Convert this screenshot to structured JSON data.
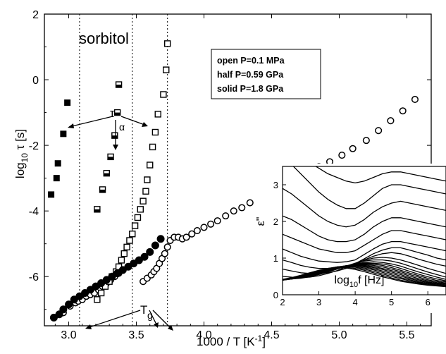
{
  "chart_data": [
    {
      "type": "scatter",
      "xlabel_prefix": "1000 / T  [K",
      "xlabel_sup": "-1",
      "xlabel_suffix": "]",
      "ylabel_prefix": "log",
      "ylabel_sub": "10",
      "ylabel_suffix": " τ [s]",
      "xlim": [
        2.82,
        5.68
      ],
      "ylim": [
        -7.5,
        2
      ],
      "x_ticks": [
        {
          "value": 3.0,
          "label": "3.0"
        },
        {
          "value": 3.5,
          "label": "3.5"
        },
        {
          "value": 4.0,
          "label": "4.0"
        },
        {
          "value": 4.5,
          "label": "4.5"
        },
        {
          "value": 5.0,
          "label": "5.0"
        },
        {
          "value": 5.5,
          "label": "5.5"
        }
      ],
      "y_ticks": [
        {
          "value": 2,
          "label": "2"
        },
        {
          "value": 0,
          "label": "0"
        },
        {
          "value": -2,
          "label": "-2"
        },
        {
          "value": -4,
          "label": "-4"
        },
        {
          "value": -6,
          "label": "-6"
        }
      ],
      "vertical_lines": [
        3.08,
        3.47,
        3.73
      ],
      "annotations": {
        "title": "sorbitol",
        "tau_alpha_symbol": "τ",
        "tau_alpha_sub": "α",
        "tg_symbol": "T",
        "tg_sub": "g"
      },
      "legend": {
        "entries": [
          "open P=0.1 MPa",
          "half  P=0.59 GPa",
          "solid P=1.8 GPa"
        ],
        "placement": "top-right"
      },
      "series": [
        {
          "name": "open",
          "marker": "open-circle",
          "x": [
            2.96,
            3.01,
            3.05,
            3.07,
            3.1,
            3.13,
            3.16,
            3.19,
            3.22,
            3.25,
            3.28,
            3.31,
            3.34,
            3.37,
            3.55,
            3.58,
            3.61,
            3.63,
            3.65,
            3.67,
            3.69,
            3.71,
            3.73,
            3.75,
            3.78,
            3.81,
            3.84,
            3.87,
            3.91,
            3.95,
            4.0,
            4.05,
            4.1,
            4.16,
            4.22,
            4.28,
            4.34,
            4.41,
            4.48,
            4.55,
            4.62,
            4.7,
            4.77,
            4.85,
            4.93,
            5.02,
            5.1,
            5.2,
            5.29,
            5.38,
            5.47,
            5.56
          ],
          "y": [
            -7.1,
            -6.9,
            -6.8,
            -6.75,
            -6.7,
            -6.6,
            -6.55,
            -6.5,
            -6.4,
            -6.3,
            -6.2,
            -6.1,
            -6.0,
            -5.9,
            -6.15,
            -6.05,
            -5.95,
            -5.85,
            -5.75,
            -5.6,
            -5.45,
            -5.3,
            -5.1,
            -4.9,
            -4.8,
            -4.8,
            -4.85,
            -4.8,
            -4.7,
            -4.6,
            -4.5,
            -4.4,
            -4.3,
            -4.15,
            -4.0,
            -3.9,
            -3.75,
            -3.6,
            -3.45,
            -3.3,
            -3.15,
            -3.0,
            -2.85,
            -2.65,
            -2.5,
            -2.3,
            -2.1,
            -1.85,
            -1.55,
            -1.25,
            -0.95,
            -0.6
          ]
        },
        {
          "name": "half",
          "marker": "half-filled-square",
          "x": [
            3.21,
            3.25,
            3.28,
            3.31,
            3.34,
            3.36
          ],
          "y": [
            -3.95,
            -3.35,
            -2.85,
            -2.35,
            -1.7,
            -1.0
          ]
        },
        {
          "name": "half-2",
          "marker": "half-filled-square",
          "x": [
            3.37
          ],
          "y": [
            -0.15
          ]
        },
        {
          "name": "open-square",
          "marker": "open-square",
          "x": [
            3.21,
            3.24,
            3.27,
            3.3,
            3.32,
            3.35,
            3.37,
            3.39,
            3.41,
            3.43,
            3.45,
            3.47,
            3.49,
            3.51,
            3.53,
            3.55,
            3.57,
            3.58,
            3.6,
            3.62,
            3.64,
            3.66,
            3.7,
            3.72
          ],
          "y": [
            -6.7,
            -6.5,
            -6.3,
            -6.15,
            -6.0,
            -5.85,
            -5.7,
            -5.5,
            -5.3,
            -5.1,
            -4.9,
            -4.7,
            -4.45,
            -4.2,
            -3.95,
            -3.7,
            -3.4,
            -3.05,
            -2.6,
            -2.05,
            -1.6,
            -1.05,
            -0.45,
            0.3
          ]
        },
        {
          "name": "open-square-top",
          "marker": "open-square",
          "x": [
            3.73
          ],
          "y": [
            1.1
          ]
        },
        {
          "name": "solid",
          "marker": "filled-square",
          "x": [
            2.87,
            2.91,
            2.92,
            2.96,
            2.99
          ],
          "y": [
            -3.5,
            -3.0,
            -2.55,
            -1.65,
            -0.7
          ]
        },
        {
          "name": "filled-circle",
          "marker": "filled-circle",
          "x": [
            2.89,
            2.93,
            2.96,
            3.0,
            3.04,
            3.08,
            3.12,
            3.16,
            3.2,
            3.24,
            3.28,
            3.32,
            3.36,
            3.4,
            3.44,
            3.48,
            3.52,
            3.56,
            3.6,
            3.64,
            3.68
          ],
          "y": [
            -7.25,
            -7.15,
            -7.0,
            -6.85,
            -6.7,
            -6.6,
            -6.5,
            -6.4,
            -6.3,
            -6.2,
            -6.1,
            -6.0,
            -5.9,
            -5.8,
            -5.7,
            -5.6,
            -5.5,
            -5.4,
            -5.25,
            -5.05,
            -4.85
          ]
        }
      ]
    },
    {
      "type": "line",
      "ylabel": "ε\"",
      "xlabel_prefix": "log",
      "xlabel_sub": "10",
      "xlabel_suffix": "f [Hz]",
      "xlim": [
        2,
        6.5
      ],
      "ylim": [
        0,
        3.5
      ],
      "x_ticks": [
        {
          "value": 2,
          "label": "2"
        },
        {
          "value": 3,
          "label": "3"
        },
        {
          "value": 4,
          "label": "4"
        },
        {
          "value": 5,
          "label": "5"
        },
        {
          "value": 6,
          "label": "6"
        }
      ],
      "y_ticks": [
        {
          "value": 0,
          "label": "0"
        },
        {
          "value": 1,
          "label": "1"
        },
        {
          "value": 2,
          "label": "2"
        },
        {
          "value": 3,
          "label": "3"
        }
      ],
      "x_samples": [
        2,
        2.25,
        2.5,
        2.75,
        3,
        3.25,
        3.5,
        3.75,
        4,
        4.25,
        4.5,
        4.75,
        5,
        5.25,
        5.5,
        5.75,
        6,
        6.25,
        6.5
      ],
      "curves": [
        [
          4.0,
          3.9,
          3.75,
          3.6,
          3.45,
          3.3,
          3.2,
          3.1,
          3.05,
          3.1,
          3.2,
          3.3,
          3.35,
          3.35,
          3.3,
          3.25,
          3.2,
          3.15,
          3.1
        ],
        [
          3.8,
          3.55,
          3.3,
          3.05,
          2.8,
          2.6,
          2.45,
          2.35,
          2.35,
          2.5,
          2.7,
          2.9,
          3.0,
          3.0,
          2.95,
          2.9,
          2.85,
          2.8,
          2.75
        ],
        [
          2.9,
          2.75,
          2.55,
          2.35,
          2.15,
          2.0,
          1.9,
          1.85,
          1.9,
          2.05,
          2.25,
          2.4,
          2.5,
          2.55,
          2.5,
          2.45,
          2.4,
          2.35,
          2.3
        ],
        [
          2.15,
          2.05,
          1.9,
          1.75,
          1.6,
          1.5,
          1.45,
          1.45,
          1.5,
          1.65,
          1.85,
          2.0,
          2.1,
          2.1,
          2.05,
          2.0,
          1.95,
          1.9,
          1.85
        ],
        [
          1.65,
          1.55,
          1.45,
          1.35,
          1.25,
          1.2,
          1.15,
          1.15,
          1.2,
          1.35,
          1.5,
          1.65,
          1.75,
          1.75,
          1.7,
          1.65,
          1.6,
          1.55,
          1.5
        ],
        [
          1.25,
          1.15,
          1.05,
          0.98,
          0.92,
          0.9,
          0.88,
          0.9,
          0.95,
          1.1,
          1.25,
          1.38,
          1.45,
          1.45,
          1.4,
          1.35,
          1.3,
          1.25,
          1.2
        ],
        [
          0.95,
          0.88,
          0.8,
          0.75,
          0.72,
          0.72,
          0.73,
          0.78,
          0.85,
          0.98,
          1.12,
          1.22,
          1.28,
          1.28,
          1.22,
          1.15,
          1.08,
          1.0,
          0.95
        ],
        [
          0.7,
          0.65,
          0.6,
          0.58,
          0.58,
          0.6,
          0.65,
          0.72,
          0.82,
          0.95,
          1.05,
          1.12,
          1.15,
          1.12,
          1.05,
          0.97,
          0.9,
          0.83,
          0.78
        ],
        [
          0.5,
          0.48,
          0.47,
          0.48,
          0.52,
          0.58,
          0.66,
          0.76,
          0.86,
          0.94,
          1.0,
          1.02,
          1.0,
          0.95,
          0.88,
          0.8,
          0.72,
          0.65,
          0.58
        ],
        [
          0.42,
          0.43,
          0.45,
          0.49,
          0.55,
          0.62,
          0.7,
          0.78,
          0.86,
          0.92,
          0.95,
          0.95,
          0.92,
          0.86,
          0.78,
          0.7,
          0.62,
          0.55,
          0.48
        ],
        [
          0.41,
          0.43,
          0.46,
          0.51,
          0.57,
          0.64,
          0.71,
          0.78,
          0.84,
          0.88,
          0.9,
          0.88,
          0.84,
          0.78,
          0.7,
          0.62,
          0.55,
          0.48,
          0.42
        ],
        [
          0.4,
          0.43,
          0.47,
          0.52,
          0.58,
          0.65,
          0.72,
          0.78,
          0.83,
          0.86,
          0.86,
          0.84,
          0.79,
          0.72,
          0.64,
          0.56,
          0.49,
          0.43,
          0.38
        ],
        [
          0.4,
          0.43,
          0.47,
          0.53,
          0.59,
          0.66,
          0.73,
          0.79,
          0.83,
          0.84,
          0.83,
          0.8,
          0.74,
          0.67,
          0.59,
          0.52,
          0.45,
          0.39,
          0.35
        ],
        [
          0.4,
          0.43,
          0.48,
          0.54,
          0.6,
          0.67,
          0.74,
          0.79,
          0.82,
          0.82,
          0.8,
          0.76,
          0.7,
          0.63,
          0.55,
          0.48,
          0.41,
          0.36,
          0.32
        ],
        [
          0.4,
          0.44,
          0.48,
          0.54,
          0.61,
          0.68,
          0.74,
          0.79,
          0.81,
          0.8,
          0.77,
          0.72,
          0.66,
          0.59,
          0.51,
          0.44,
          0.38,
          0.33,
          0.3
        ],
        [
          0.4,
          0.44,
          0.49,
          0.55,
          0.62,
          0.69,
          0.75,
          0.79,
          0.8,
          0.78,
          0.74,
          0.69,
          0.62,
          0.55,
          0.47,
          0.41,
          0.35,
          0.31,
          0.28
        ],
        [
          0.4,
          0.44,
          0.49,
          0.56,
          0.63,
          0.7,
          0.76,
          0.79,
          0.79,
          0.76,
          0.71,
          0.65,
          0.58,
          0.51,
          0.44,
          0.38,
          0.33,
          0.29,
          0.26
        ],
        [
          0.41,
          0.45,
          0.5,
          0.57,
          0.64,
          0.71,
          0.76,
          0.78,
          0.77,
          0.73,
          0.68,
          0.61,
          0.54,
          0.47,
          0.41,
          0.35,
          0.31,
          0.27,
          0.25
        ],
        [
          0.41,
          0.45,
          0.51,
          0.58,
          0.65,
          0.72,
          0.76,
          0.77,
          0.75,
          0.7,
          0.64,
          0.57,
          0.5,
          0.44,
          0.38,
          0.33,
          0.29,
          0.26,
          0.24
        ],
        [
          0.41,
          0.46,
          0.52,
          0.59,
          0.66,
          0.72,
          0.75,
          0.75,
          0.72,
          0.67,
          0.6,
          0.53,
          0.46,
          0.4,
          0.35,
          0.31,
          0.27,
          0.25,
          0.23
        ],
        [
          0.42,
          0.47,
          0.53,
          0.6,
          0.67,
          0.72,
          0.74,
          0.73,
          0.69,
          0.63,
          0.56,
          0.49,
          0.43,
          0.37,
          0.33,
          0.29,
          0.26,
          0.24,
          0.22
        ]
      ]
    }
  ]
}
